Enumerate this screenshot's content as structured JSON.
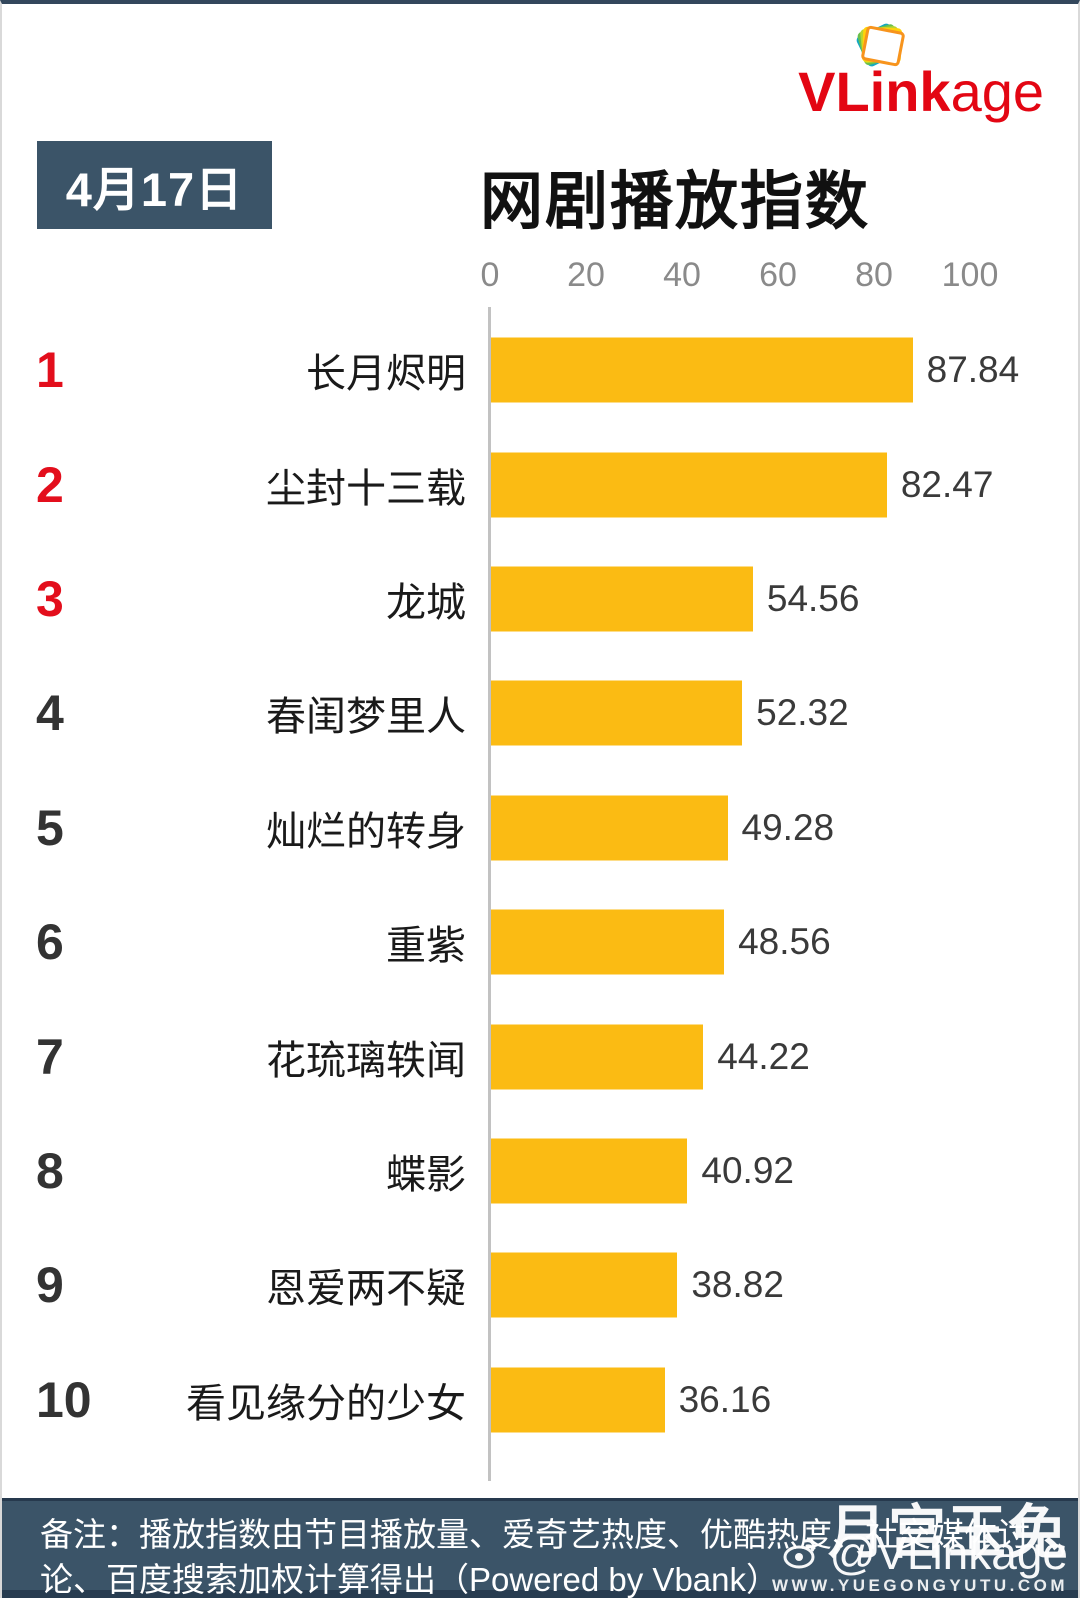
{
  "logo": {
    "bold": "VLink",
    "light": "age"
  },
  "header": {
    "date_badge": "4月17日",
    "title": "网剧播放指数"
  },
  "footer": {
    "note": "备注：播放指数由节目播放量、爱奇艺热度、优酷热度、社交媒体讨论、百度搜索加权计算得出（Powered by Vbank）"
  },
  "watermark": {
    "big": "月宫玉兔",
    "handle": "@VLinkage",
    "url": "WWW.YUEGONGYUTU.COM"
  },
  "colors": {
    "bar": "#FBBB13",
    "panel": "#3B5468",
    "logo_red": "#E30613",
    "rank_top3": "#E30E1C",
    "rank_rest": "#333333"
  },
  "chart_data": {
    "type": "bar",
    "orientation": "horizontal",
    "title": "网剧播放指数",
    "date": "4月17日",
    "categories": [
      "长月烬明",
      "尘封十三载",
      "龙城",
      "春闺梦里人",
      "灿烂的转身",
      "重紫",
      "花琉璃轶闻",
      "蝶影",
      "恩爱两不疑",
      "看见缘分的少女"
    ],
    "values": [
      87.84,
      82.47,
      54.56,
      52.32,
      49.28,
      48.56,
      44.22,
      40.92,
      38.82,
      36.16
    ],
    "ranks": [
      1,
      2,
      3,
      4,
      5,
      6,
      7,
      8,
      9,
      10
    ],
    "xlim": [
      0,
      100
    ],
    "xticks": [
      0,
      20,
      40,
      60,
      80,
      100
    ],
    "xlabel": "",
    "ylabel": "",
    "grid": false,
    "legend": false,
    "bar_color": "#FBBB13",
    "value_labels": true
  }
}
